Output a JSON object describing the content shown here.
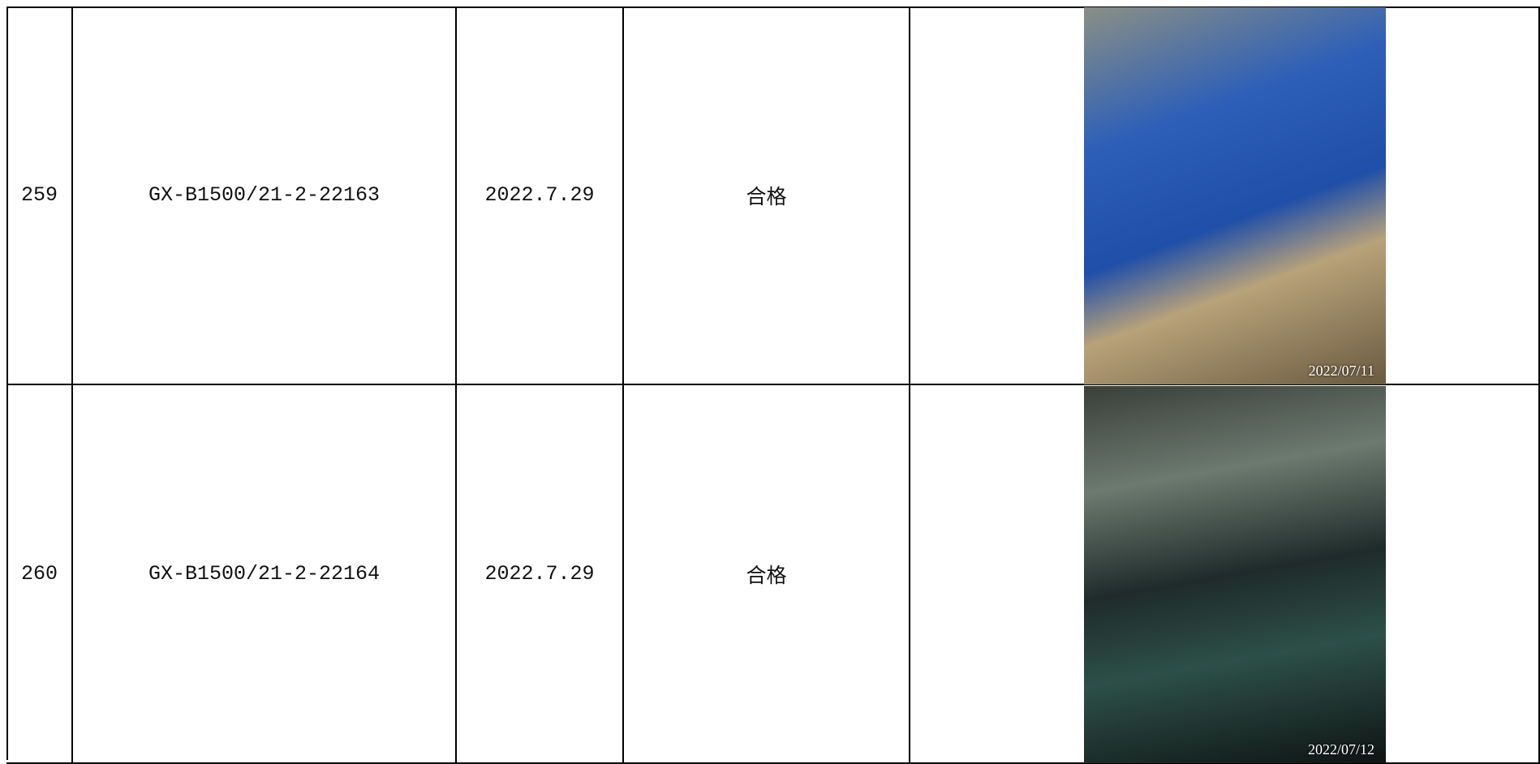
{
  "table": {
    "rows": [
      {
        "number": "259",
        "model": "GX-B1500/21-2-22163",
        "date": "2022.7.29",
        "result": "合格",
        "photo_timestamp": "2022/07/11"
      },
      {
        "number": "260",
        "model": "GX-B1500/21-2-22164",
        "date": "2022.7.29",
        "result": "合格",
        "photo_timestamp": "2022/07/12"
      }
    ]
  }
}
